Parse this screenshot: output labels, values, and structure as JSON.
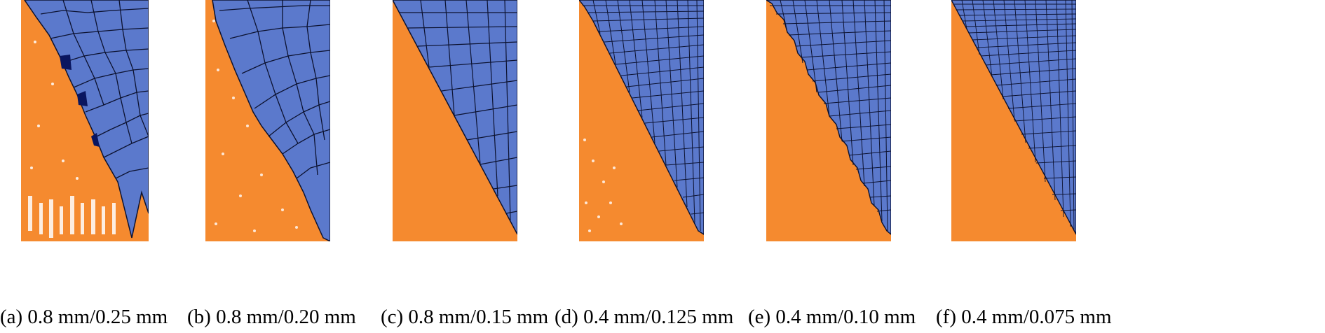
{
  "colors": {
    "workpiece": "#f58a2f",
    "tool_mesh": "#5b79cc",
    "mesh_line": "#0c1230",
    "background": "#ffffff"
  },
  "panels": [
    {
      "id": "a",
      "caption": "(a) 0.8 mm/0.25 mm",
      "mesh": "coarse",
      "edge": "fractured"
    },
    {
      "id": "b",
      "caption": "(b) 0.8 mm/0.20 mm",
      "mesh": "coarse",
      "edge": "rough"
    },
    {
      "id": "c",
      "caption": "(c) 0.8 mm/0.15 mm",
      "mesh": "medium",
      "edge": "smooth"
    },
    {
      "id": "d",
      "caption": "(d) 0.4 mm/0.125 mm",
      "mesh": "fine",
      "edge": "slightly-rough"
    },
    {
      "id": "e",
      "caption": "(e) 0.4 mm/0.10 mm",
      "mesh": "fine",
      "edge": "serrated"
    },
    {
      "id": "f",
      "caption": "(f) 0.4 mm/0.075 mm",
      "mesh": "very-fine",
      "edge": "smooth"
    }
  ]
}
